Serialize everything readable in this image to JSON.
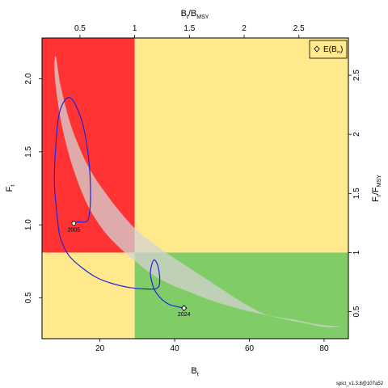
{
  "chart_data": {
    "type": "line",
    "xlabel": "B",
    "xlabel_sub": "t",
    "ylabel": "F",
    "ylabel_sub": "t",
    "top_label": "B",
    "top_label_sub": "t",
    "top_label_mid": "/B",
    "top_label_mid_sub": "MSY",
    "right_label": "F",
    "right_label_sub": "t",
    "right_label_mid": "/F",
    "right_label_mid_sub": "MSY",
    "xlim": [
      4.5,
      86.5
    ],
    "ylim": [
      0.22,
      2.28
    ],
    "x_ticks": [
      20,
      40,
      60,
      80
    ],
    "x_tick_labels": [
      "20",
      "40",
      "60",
      "80"
    ],
    "y_ticks": [
      0.5,
      1.0,
      1.5,
      2.0
    ],
    "y_tick_labels": [
      "0.5",
      "1.0",
      "1.5",
      "2.0"
    ],
    "top_ticks_bmsy": [
      0.5,
      1,
      1.5,
      2,
      2.5
    ],
    "top_tick_labels": [
      "0.5",
      "1",
      "1.5",
      "2",
      "2.5"
    ],
    "right_ticks_fmsy": [
      0.5,
      1,
      1.5,
      2,
      2.5
    ],
    "right_tick_labels": [
      "0.5",
      "1",
      "1.5",
      "2",
      "2.5"
    ],
    "Bmsy": 29.3,
    "Fmsy": 0.81,
    "zone_colors": {
      "red": "#ff3333",
      "yellow": "#ffe98c",
      "green": "#80cc66",
      "ellipse": "#d3d3d3",
      "trajectory": "#2222dd"
    },
    "legend": {
      "label": "E(B",
      "label_sub": "∞",
      "label_end": ")",
      "position": "top-right"
    },
    "confidence_region": [
      [
        8.2,
        2.15
      ],
      [
        9.5,
        1.95
      ],
      [
        12,
        1.7
      ],
      [
        15,
        1.5
      ],
      [
        18,
        1.35
      ],
      [
        22,
        1.2
      ],
      [
        26,
        1.07
      ],
      [
        30,
        0.96
      ],
      [
        35,
        0.86
      ],
      [
        40,
        0.77
      ],
      [
        46,
        0.67
      ],
      [
        52,
        0.57
      ],
      [
        58,
        0.47
      ],
      [
        64,
        0.39
      ],
      [
        70,
        0.35
      ],
      [
        76,
        0.32
      ],
      [
        80,
        0.3
      ],
      [
        84,
        0.3
      ],
      [
        83.5,
        0.305
      ],
      [
        78,
        0.32
      ],
      [
        72,
        0.35
      ],
      [
        65,
        0.38
      ],
      [
        58,
        0.42
      ],
      [
        50,
        0.48
      ],
      [
        44,
        0.54
      ],
      [
        39,
        0.59
      ],
      [
        34,
        0.66
      ],
      [
        29,
        0.76
      ],
      [
        25,
        0.85
      ],
      [
        21,
        0.96
      ],
      [
        17,
        1.12
      ],
      [
        14,
        1.3
      ],
      [
        11.5,
        1.5
      ],
      [
        9.5,
        1.72
      ],
      [
        8.3,
        1.92
      ],
      [
        7.8,
        2.08
      ]
    ],
    "trajectory": [
      [
        13,
        1.01
      ],
      [
        14,
        1.02
      ],
      [
        16,
        1.02
      ],
      [
        17,
        1.05
      ],
      [
        17.5,
        1.2
      ],
      [
        17,
        1.45
      ],
      [
        15.5,
        1.68
      ],
      [
        13.5,
        1.82
      ],
      [
        12,
        1.87
      ],
      [
        10.5,
        1.85
      ],
      [
        9,
        1.75
      ],
      [
        8.2,
        1.55
      ],
      [
        7.8,
        1.3
      ],
      [
        8.3,
        1.12
      ],
      [
        8.8,
        1.0
      ],
      [
        9.3,
        0.92
      ],
      [
        10.5,
        0.84
      ],
      [
        12,
        0.78
      ],
      [
        15,
        0.71
      ],
      [
        19,
        0.64
      ],
      [
        23,
        0.6
      ],
      [
        28,
        0.57
      ],
      [
        33,
        0.56
      ],
      [
        35.5,
        0.57
      ],
      [
        36,
        0.63
      ],
      [
        35.5,
        0.72
      ],
      [
        34.5,
        0.76
      ],
      [
        33.8,
        0.72
      ],
      [
        33.5,
        0.66
      ],
      [
        34,
        0.6
      ],
      [
        34.5,
        0.56
      ],
      [
        35.5,
        0.52
      ],
      [
        37,
        0.48
      ],
      [
        39,
        0.45
      ],
      [
        42.5,
        0.43
      ]
    ],
    "points": [
      {
        "label": "2005",
        "x": 13,
        "y": 1.01
      },
      {
        "label": "2024",
        "x": 42.5,
        "y": 0.43
      }
    ],
    "Binf": {
      "x": 42.5,
      "y": 0.43
    },
    "footer": "spict_v1.3.8@107a52"
  }
}
